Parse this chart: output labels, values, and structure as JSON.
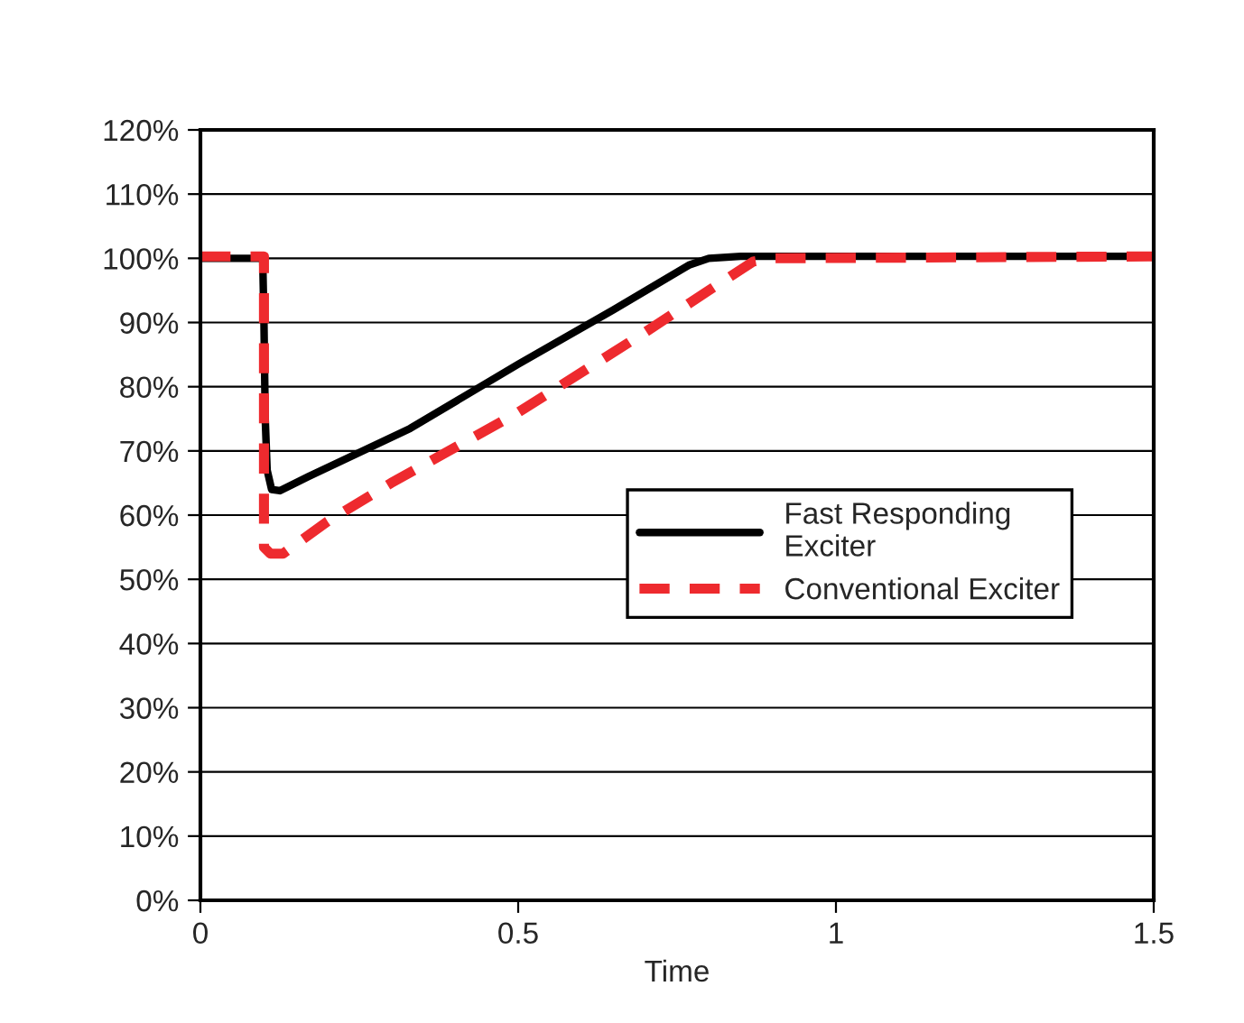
{
  "chart_data": {
    "type": "line",
    "xlabel": "Time",
    "xlim": [
      0,
      1.5
    ],
    "xticks": [
      0,
      0.5,
      1,
      1.5
    ],
    "ylim": [
      0,
      120
    ],
    "yticks": [
      {
        "value": 0,
        "label": "0%"
      },
      {
        "value": 10,
        "label": "10%"
      },
      {
        "value": 20,
        "label": "20%"
      },
      {
        "value": 30,
        "label": "30%"
      },
      {
        "value": 40,
        "label": "40%"
      },
      {
        "value": 50,
        "label": "50%"
      },
      {
        "value": 60,
        "label": "60%"
      },
      {
        "value": 70,
        "label": "70%"
      },
      {
        "value": 80,
        "label": "80%"
      },
      {
        "value": 90,
        "label": "90%"
      },
      {
        "value": 100,
        "label": "100%"
      },
      {
        "value": 110,
        "label": "110%"
      },
      {
        "value": 120,
        "label": "120%"
      }
    ],
    "grid": "y",
    "legend": "center right",
    "series": [
      {
        "name": "Fast Responding\nExciter",
        "color": "#000000",
        "line_style": "solid",
        "x": [
          0,
          0.098,
          0.1,
          0.102,
          0.105,
          0.112,
          0.125,
          0.17,
          0.33,
          0.5,
          0.65,
          0.77,
          0.8,
          0.85,
          1.5
        ],
        "values": [
          100,
          100,
          90,
          75,
          67,
          64,
          63.8,
          66,
          73.5,
          83.5,
          92,
          99,
          100,
          100.3,
          100.3
        ]
      },
      {
        "name": "Conventional Exciter",
        "color": "#ee2a2e",
        "line_style": "dashed",
        "x": [
          0,
          0.1,
          0.1,
          0.11,
          0.13,
          0.2,
          0.3,
          0.5,
          0.7,
          0.8,
          0.87,
          0.9,
          1.5
        ],
        "values": [
          100.3,
          100.3,
          55,
          54,
          54,
          59,
          65,
          76,
          88.5,
          95,
          99.5,
          100,
          100.3
        ]
      }
    ]
  }
}
